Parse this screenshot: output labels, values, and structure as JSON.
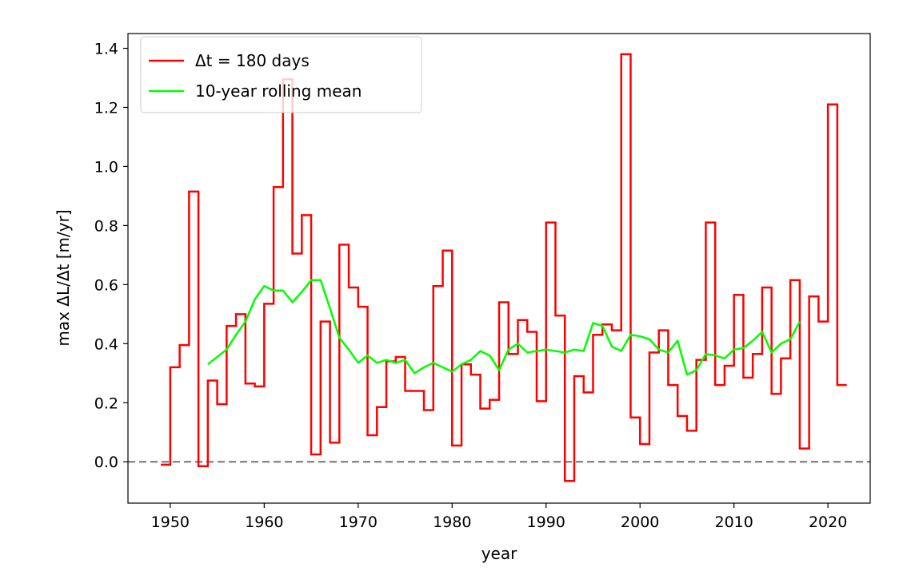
{
  "chart_data": {
    "type": "line",
    "xlabel": "year",
    "ylabel": "max ΔL/Δt [m/yr]",
    "xlim": [
      1945.5,
      2024.5
    ],
    "ylim": [
      -0.14,
      1.45
    ],
    "x_ticks": [
      1950,
      1960,
      1970,
      1980,
      1990,
      2000,
      2010,
      2020
    ],
    "y_ticks": [
      0.0,
      0.2,
      0.4,
      0.6,
      0.8,
      1.0,
      1.2,
      1.4
    ],
    "x_tick_labels": [
      "1950",
      "1960",
      "1970",
      "1980",
      "1990",
      "2000",
      "2010",
      "2020"
    ],
    "y_tick_labels": [
      "0.0",
      "0.2",
      "0.4",
      "0.6",
      "0.8",
      "1.0",
      "1.2",
      "1.4"
    ],
    "grid": false,
    "legend_position": "top-left",
    "legend": [
      "Δt = 180 days",
      "10-year rolling mean"
    ],
    "reference_line": {
      "y": 0.0,
      "style": "dashed",
      "color": "#808080"
    },
    "series": [
      {
        "name": "Δt = 180 days",
        "style": "step",
        "color": "#ff0000",
        "x": [
          1949,
          1950,
          1951,
          1952,
          1953,
          1954,
          1955,
          1956,
          1957,
          1958,
          1959,
          1960,
          1961,
          1962,
          1963,
          1964,
          1965,
          1966,
          1967,
          1968,
          1969,
          1970,
          1971,
          1972,
          1973,
          1974,
          1975,
          1976,
          1977,
          1978,
          1979,
          1980,
          1981,
          1982,
          1983,
          1984,
          1985,
          1986,
          1987,
          1988,
          1989,
          1990,
          1991,
          1992,
          1993,
          1994,
          1995,
          1996,
          1997,
          1998,
          1999,
          2000,
          2001,
          2002,
          2003,
          2004,
          2005,
          2006,
          2007,
          2008,
          2009,
          2010,
          2011,
          2012,
          2013,
          2014,
          2015,
          2016,
          2017,
          2018,
          2019,
          2020,
          2021
        ],
        "values": [
          -0.01,
          0.32,
          0.395,
          0.915,
          -0.015,
          0.275,
          0.195,
          0.46,
          0.5,
          0.265,
          0.255,
          0.535,
          0.93,
          1.295,
          0.705,
          0.835,
          0.025,
          0.475,
          0.065,
          0.735,
          0.59,
          0.525,
          0.09,
          0.185,
          0.34,
          0.355,
          0.24,
          0.24,
          0.175,
          0.595,
          0.715,
          0.055,
          0.33,
          0.295,
          0.18,
          0.21,
          0.54,
          0.365,
          0.48,
          0.44,
          0.205,
          0.81,
          0.495,
          -0.065,
          0.29,
          0.235,
          0.43,
          0.465,
          0.445,
          1.38,
          0.15,
          0.06,
          0.37,
          0.445,
          0.26,
          0.155,
          0.105,
          0.345,
          0.81,
          0.26,
          0.325,
          0.565,
          0.285,
          0.365,
          0.59,
          0.23,
          0.35,
          0.615,
          0.045,
          0.56,
          0.475,
          1.21,
          0.26
        ]
      },
      {
        "name": "10-year rolling mean",
        "style": "line",
        "color": "#00ff00",
        "x": [
          1954,
          1955,
          1956,
          1957,
          1958,
          1959,
          1960,
          1961,
          1962,
          1963,
          1964,
          1965,
          1966,
          1967,
          1968,
          1969,
          1970,
          1971,
          1972,
          1973,
          1974,
          1975,
          1976,
          1977,
          1978,
          1979,
          1980,
          1981,
          1982,
          1983,
          1984,
          1985,
          1986,
          1987,
          1988,
          1989,
          1990,
          1991,
          1992,
          1993,
          1994,
          1995,
          1996,
          1997,
          1998,
          1999,
          2000,
          2001,
          2002,
          2003,
          2004,
          2005,
          2006,
          2007,
          2008,
          2009,
          2010,
          2011,
          2012,
          2013,
          2014,
          2015,
          2016,
          2017
        ],
        "values": [
          0.33,
          0.355,
          0.38,
          0.43,
          0.475,
          0.55,
          0.595,
          0.58,
          0.58,
          0.54,
          0.575,
          0.615,
          0.615,
          0.52,
          0.42,
          0.38,
          0.335,
          0.36,
          0.335,
          0.345,
          0.335,
          0.345,
          0.3,
          0.32,
          0.335,
          0.32,
          0.305,
          0.33,
          0.345,
          0.375,
          0.36,
          0.31,
          0.38,
          0.4,
          0.37,
          0.375,
          0.38,
          0.375,
          0.37,
          0.38,
          0.375,
          0.47,
          0.46,
          0.39,
          0.375,
          0.43,
          0.425,
          0.415,
          0.38,
          0.37,
          0.41,
          0.295,
          0.31,
          0.365,
          0.36,
          0.35,
          0.38,
          0.385,
          0.41,
          0.44,
          0.37,
          0.4,
          0.415,
          0.475
        ]
      }
    ]
  }
}
